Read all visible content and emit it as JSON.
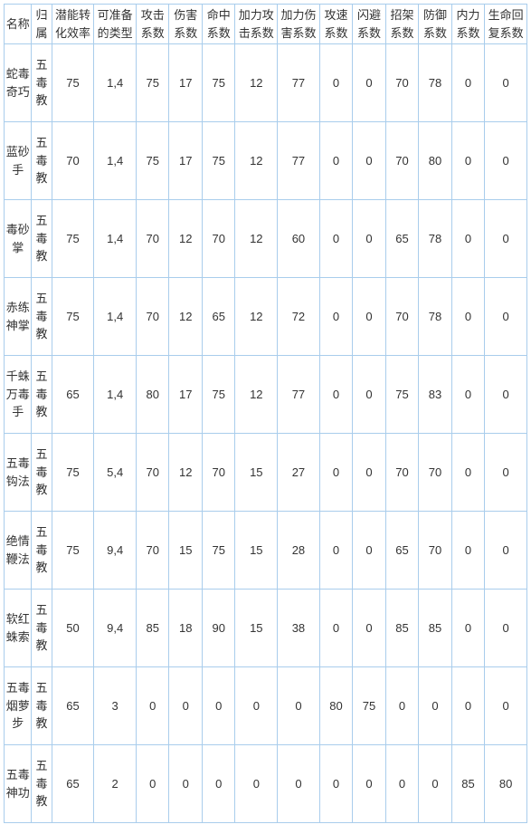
{
  "table": {
    "columns": [
      "名称",
      "归属",
      "潜能转化效率",
      "可准备的类型",
      "攻击系数",
      "伤害系数",
      "命中系数",
      "加力攻击系数",
      "加力伤害系数",
      "攻速系数",
      "闪避系数",
      "招架系数",
      "防御系数",
      "内力系数",
      "生命回复系数"
    ],
    "rows": [
      {
        "name": "蛇毒奇巧",
        "faction": "五毒教",
        "conv": "75",
        "type": "1,4",
        "atk": "75",
        "dmg": "17",
        "hit": "75",
        "fatk": "12",
        "fdmg": "77",
        "spd": "0",
        "dodge": "0",
        "parry": "70",
        "def": "78",
        "inner": "0",
        "regen": "0"
      },
      {
        "name": "蓝砂手",
        "faction": "五毒教",
        "conv": "70",
        "type": "1,4",
        "atk": "75",
        "dmg": "17",
        "hit": "75",
        "fatk": "12",
        "fdmg": "77",
        "spd": "0",
        "dodge": "0",
        "parry": "70",
        "def": "80",
        "inner": "0",
        "regen": "0"
      },
      {
        "name": "毒砂掌",
        "faction": "五毒教",
        "conv": "75",
        "type": "1,4",
        "atk": "70",
        "dmg": "12",
        "hit": "70",
        "fatk": "12",
        "fdmg": "60",
        "spd": "0",
        "dodge": "0",
        "parry": "65",
        "def": "78",
        "inner": "0",
        "regen": "0"
      },
      {
        "name": "赤练神掌",
        "faction": "五毒教",
        "conv": "75",
        "type": "1,4",
        "atk": "70",
        "dmg": "12",
        "hit": "65",
        "fatk": "12",
        "fdmg": "72",
        "spd": "0",
        "dodge": "0",
        "parry": "70",
        "def": "78",
        "inner": "0",
        "regen": "0"
      },
      {
        "name": "千蛛万毒手",
        "faction": "五毒教",
        "conv": "65",
        "type": "1,4",
        "atk": "80",
        "dmg": "17",
        "hit": "75",
        "fatk": "12",
        "fdmg": "77",
        "spd": "0",
        "dodge": "0",
        "parry": "75",
        "def": "83",
        "inner": "0",
        "regen": "0"
      },
      {
        "name": "五毒钩法",
        "faction": "五毒教",
        "conv": "75",
        "type": "5,4",
        "atk": "70",
        "dmg": "12",
        "hit": "70",
        "fatk": "15",
        "fdmg": "27",
        "spd": "0",
        "dodge": "0",
        "parry": "70",
        "def": "70",
        "inner": "0",
        "regen": "0"
      },
      {
        "name": "绝情鞭法",
        "faction": "五毒教",
        "conv": "75",
        "type": "9,4",
        "atk": "70",
        "dmg": "15",
        "hit": "75",
        "fatk": "15",
        "fdmg": "28",
        "spd": "0",
        "dodge": "0",
        "parry": "65",
        "def": "70",
        "inner": "0",
        "regen": "0"
      },
      {
        "name": "软红蛛索",
        "faction": "五毒教",
        "conv": "50",
        "type": "9,4",
        "atk": "85",
        "dmg": "18",
        "hit": "90",
        "fatk": "15",
        "fdmg": "38",
        "spd": "0",
        "dodge": "0",
        "parry": "85",
        "def": "85",
        "inner": "0",
        "regen": "0"
      },
      {
        "name": "五毒烟萝步",
        "faction": "五毒教",
        "conv": "65",
        "type": "3",
        "atk": "0",
        "dmg": "0",
        "hit": "0",
        "fatk": "0",
        "fdmg": "0",
        "spd": "80",
        "dodge": "75",
        "parry": "0",
        "def": "0",
        "inner": "0",
        "regen": "0"
      },
      {
        "name": "五毒神功",
        "faction": "五毒教",
        "conv": "65",
        "type": "2",
        "atk": "0",
        "dmg": "0",
        "hit": "0",
        "fatk": "0",
        "fdmg": "0",
        "spd": "0",
        "dodge": "0",
        "parry": "0",
        "def": "0",
        "inner": "85",
        "regen": "80"
      }
    ],
    "border_color": "#a9cdec",
    "text_color": "#333333",
    "background_color": "#ffffff",
    "font_size": 13
  }
}
